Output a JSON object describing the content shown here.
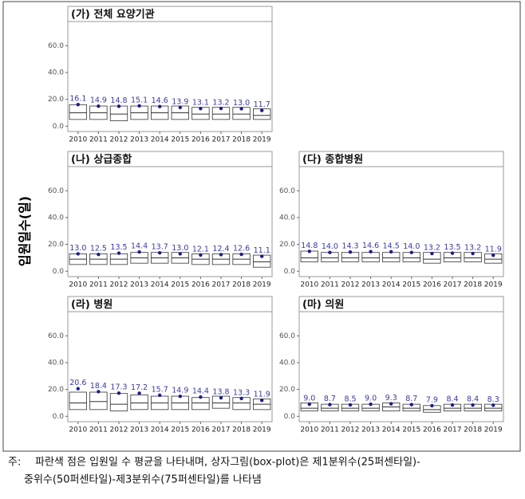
{
  "y_label": "입원일수(일)",
  "note": {
    "prefix": "주:",
    "lines": [
      "파란색 점은 입원일 수 평균을 나타내며, 상자그림(box-plot)은 제1분위수(25퍼센타일)-",
      "중위수(50퍼센타일)-제3분위수(75퍼센타일)를 나타냄"
    ]
  },
  "chart_data": [
    {
      "type": "box",
      "title": "(가) 전체 요양기관",
      "mean_color": "#1c1c8c",
      "categories": [
        "2010",
        "2011",
        "2012",
        "2013",
        "2014",
        "2015",
        "2016",
        "2017",
        "2018",
        "2019"
      ],
      "means": [
        16.1,
        14.9,
        14.8,
        15.1,
        14.6,
        13.9,
        13.1,
        13.2,
        13.0,
        11.7
      ],
      "value_labels": [
        "16.1",
        "14.9",
        "14.8",
        "15.1",
        "14.6",
        "13.9",
        "13.1",
        "13.2",
        "13.0",
        "11.7"
      ],
      "q1": [
        5,
        5,
        4,
        5,
        5,
        5,
        5,
        5,
        5,
        5
      ],
      "median": [
        10,
        10,
        9,
        10,
        10,
        10,
        9,
        9,
        9,
        8
      ],
      "q3": [
        16,
        15,
        15,
        15,
        15,
        15,
        14,
        14,
        14,
        13
      ],
      "ylim": [
        -4,
        78
      ],
      "yticks": [
        {
          "value": 0,
          "label": "0.0"
        },
        {
          "value": 20,
          "label": "20.0"
        },
        {
          "value": 40,
          "label": "40.0"
        },
        {
          "value": 60,
          "label": "60.0"
        }
      ]
    },
    {
      "type": "box",
      "title": "(나) 상급종합",
      "mean_color": "#1c1c8c",
      "categories": [
        "2010",
        "2011",
        "2012",
        "2013",
        "2014",
        "2015",
        "2016",
        "2017",
        "2018",
        "2019"
      ],
      "means": [
        13.0,
        12.5,
        13.5,
        14.4,
        13.7,
        13.0,
        12.1,
        12.4,
        12.6,
        11.1
      ],
      "value_labels": [
        "13.0",
        "12.5",
        "13.5",
        "14.4",
        "13.7",
        "13.0",
        "12.1",
        "12.4",
        "12.6",
        "11.1"
      ],
      "q1": [
        5,
        5,
        5,
        6,
        6,
        6,
        5,
        5,
        5,
        3
      ],
      "median": [
        9,
        9,
        9,
        10,
        10,
        10,
        9,
        9,
        9,
        7
      ],
      "q3": [
        13,
        13,
        13,
        14,
        14,
        14,
        13,
        13,
        13,
        12
      ],
      "ylim": [
        -4,
        78
      ],
      "yticks": [
        {
          "value": 0,
          "label": "0.0"
        },
        {
          "value": 20,
          "label": "20.0"
        },
        {
          "value": 40,
          "label": "40.0"
        },
        {
          "value": 60,
          "label": "60.0"
        }
      ]
    },
    {
      "type": "box",
      "title": "(다) 종합병원",
      "mean_color": "#1c1c8c",
      "categories": [
        "2010",
        "2011",
        "2012",
        "2013",
        "2014",
        "2015",
        "2016",
        "2017",
        "2018",
        "2019"
      ],
      "means": [
        14.8,
        14.0,
        14.3,
        14.6,
        14.5,
        14.0,
        13.2,
        13.5,
        13.2,
        11.9
      ],
      "value_labels": [
        "14.8",
        "14.0",
        "14.3",
        "14.6",
        "14.5",
        "14.0",
        "13.2",
        "13.5",
        "13.2",
        "11.9"
      ],
      "q1": [
        7,
        7,
        7,
        7,
        7,
        7,
        6,
        7,
        7,
        6
      ],
      "median": [
        10,
        10,
        10,
        10,
        10,
        10,
        9,
        10,
        10,
        9
      ],
      "q3": [
        15,
        14,
        14,
        14,
        14,
        14,
        14,
        14,
        14,
        13
      ],
      "ylim": [
        -4,
        78
      ],
      "yticks": [
        {
          "value": 0,
          "label": "0.0"
        },
        {
          "value": 20,
          "label": "20.0"
        },
        {
          "value": 40,
          "label": "40.0"
        },
        {
          "value": 60,
          "label": "60.0"
        }
      ]
    },
    {
      "type": "box",
      "title": "(라) 병원",
      "mean_color": "#1c1c8c",
      "categories": [
        "2010",
        "2011",
        "2012",
        "2013",
        "2014",
        "2015",
        "2016",
        "2017",
        "2018",
        "2019"
      ],
      "means": [
        20.6,
        18.4,
        17.3,
        17.2,
        15.7,
        14.9,
        14.4,
        13.8,
        13.3,
        11.9
      ],
      "value_labels": [
        "20.6",
        "18.4",
        "17.3",
        "17.2",
        "15.7",
        "14.9",
        "14.4",
        "13.8",
        "13.3",
        "11.9"
      ],
      "q1": [
        5,
        5,
        4,
        5,
        5,
        5,
        5,
        6,
        5,
        5
      ],
      "median": [
        10,
        11,
        9,
        10,
        10,
        10,
        10,
        10,
        10,
        9
      ],
      "q3": [
        18,
        18,
        17,
        16,
        15,
        15,
        14,
        15,
        14,
        13
      ],
      "ylim": [
        -4,
        78
      ],
      "yticks": [
        {
          "value": 0,
          "label": "0.0"
        },
        {
          "value": 20,
          "label": "20.0"
        },
        {
          "value": 40,
          "label": "40.0"
        },
        {
          "value": 60,
          "label": "60.0"
        }
      ]
    },
    {
      "type": "box",
      "title": "(마) 의원",
      "mean_color": "#1c1c8c",
      "categories": [
        "2010",
        "2011",
        "2012",
        "2013",
        "2014",
        "2015",
        "2016",
        "2017",
        "2018",
        "2019"
      ],
      "means": [
        9.0,
        8.7,
        8.5,
        9.0,
        9.3,
        8.7,
        7.9,
        8.4,
        8.4,
        8.3
      ],
      "value_labels": [
        "9.0",
        "8.7",
        "8.5",
        "9.0",
        "9.3",
        "8.7",
        "7.9",
        "8.4",
        "8.4",
        "8.3"
      ],
      "q1": [
        4,
        4,
        4,
        4,
        4,
        4,
        3,
        4,
        4,
        4
      ],
      "median": [
        6,
        6,
        6,
        6,
        7,
        6,
        5,
        6,
        6,
        6
      ],
      "q3": [
        10,
        9,
        9,
        9,
        10,
        9,
        8,
        9,
        9,
        9
      ],
      "ylim": [
        -4,
        78
      ],
      "yticks": [
        {
          "value": 0,
          "label": "0.0"
        },
        {
          "value": 20,
          "label": "20.0"
        },
        {
          "value": 40,
          "label": "40.0"
        },
        {
          "value": 60,
          "label": "60.0"
        }
      ]
    }
  ]
}
